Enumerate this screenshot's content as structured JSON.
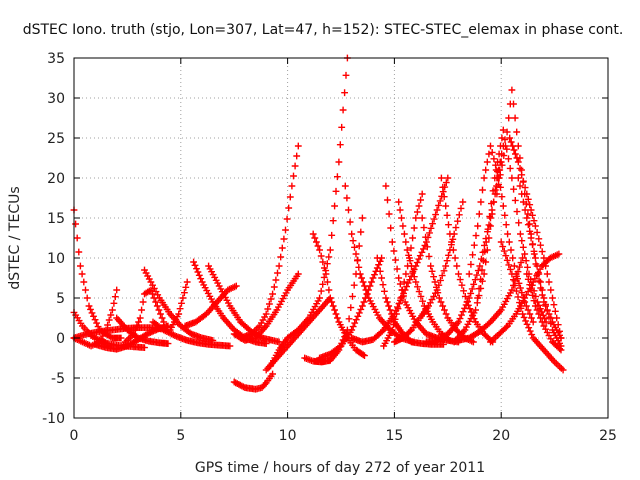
{
  "chart_data": {
    "type": "scatter",
    "title": "dSTEC Iono. truth (stjo, Lon=307, Lat=47, h=152): STEC-STEC_elemax in phase cont.",
    "xlabel": "GPS time / hours of day 272 of year 2011",
    "ylabel": "dSTEC  / TECUs",
    "xlim": [
      0,
      25
    ],
    "ylim": [
      -10,
      35
    ],
    "x_ticks": [
      0,
      5,
      10,
      15,
      20,
      25
    ],
    "y_ticks": [
      -10,
      -5,
      0,
      5,
      10,
      15,
      20,
      25,
      30,
      35
    ],
    "x_tick_labels": [
      "0",
      "5",
      "10",
      "15",
      "20",
      "25"
    ],
    "y_tick_labels": [
      "-10",
      "-5",
      "0",
      "5",
      "10",
      "15",
      "20",
      "25",
      "30",
      "35"
    ],
    "grid": true,
    "marker": "plus",
    "color": "#ff0000",
    "series": [
      {
        "x": [
          0.0,
          0.3,
          0.7,
          1.2,
          1.8,
          2.2
        ],
        "y": [
          16.0,
          9.0,
          4.0,
          1.0,
          0.0,
          0.0
        ]
      },
      {
        "x": [
          0.0,
          0.4,
          0.8,
          1.2,
          1.6,
          2.0,
          2.4,
          2.8,
          3.3
        ],
        "y": [
          3.2,
          1.5,
          0.3,
          -0.3,
          -0.7,
          -0.9,
          -1.0,
          -1.1,
          -1.2
        ]
      },
      {
        "x": [
          0.0,
          0.4,
          0.8,
          1.2,
          1.5,
          1.8,
          2.0
        ],
        "y": [
          0.0,
          -0.5,
          -1.0,
          -0.5,
          1.0,
          3.5,
          6.0
        ]
      },
      {
        "x": [
          0.0,
          0.6,
          1.2,
          1.8,
          2.4,
          3.0,
          3.6,
          4.2
        ],
        "y": [
          0.0,
          0.5,
          0.8,
          1.0,
          1.2,
          1.3,
          1.3,
          1.1
        ]
      },
      {
        "x": [
          1.0,
          1.5,
          2.0,
          2.5,
          3.0,
          3.5,
          4.0,
          4.4
        ],
        "y": [
          -0.8,
          -1.2,
          -1.4,
          -1.0,
          -0.2,
          0.6,
          1.2,
          1.5
        ]
      },
      {
        "x": [
          2.0,
          2.5,
          3.0,
          3.5,
          4.0,
          4.4
        ],
        "y": [
          2.5,
          1.0,
          0.0,
          -0.4,
          -0.6,
          -0.7
        ]
      },
      {
        "x": [
          2.4,
          2.8,
          3.1,
          3.3,
          3.6,
          3.9,
          4.2
        ],
        "y": [
          -0.5,
          0.5,
          2.5,
          5.5,
          6.0,
          4.0,
          2.0
        ]
      },
      {
        "x": [
          3.3,
          3.6,
          4.0,
          4.5,
          5.0,
          5.5,
          6.0,
          6.5
        ],
        "y": [
          8.5,
          7.0,
          5.0,
          3.0,
          1.5,
          0.5,
          0.0,
          -0.3
        ]
      },
      {
        "x": [
          3.7,
          4.2,
          4.8,
          5.3,
          5.8,
          6.3,
          6.8,
          7.3
        ],
        "y": [
          2.0,
          1.0,
          0.2,
          -0.3,
          -0.6,
          -0.8,
          -0.9,
          -1.0
        ]
      },
      {
        "x": [
          4.5,
          4.9,
          5.1,
          5.3
        ],
        "y": [
          1.0,
          3.0,
          5.0,
          7.0
        ]
      },
      {
        "x": [
          5.6,
          6.0,
          6.5,
          7.0,
          7.5,
          8.0,
          8.5,
          9.0
        ],
        "y": [
          9.5,
          7.0,
          4.5,
          2.5,
          1.0,
          0.0,
          -0.5,
          -0.7
        ]
      },
      {
        "x": [
          6.3,
          6.8,
          7.3,
          7.8,
          8.3,
          8.8,
          9.3,
          9.6
        ],
        "y": [
          9.0,
          6.5,
          4.0,
          2.0,
          0.8,
          0.0,
          -0.3,
          -0.5
        ]
      },
      {
        "x": [
          5.2,
          5.7,
          6.2,
          6.7,
          7.2,
          7.6
        ],
        "y": [
          1.5,
          2.0,
          3.0,
          4.5,
          6.0,
          6.5
        ]
      },
      {
        "x": [
          7.5,
          8.0,
          8.5,
          9.0,
          9.5,
          10.0,
          10.5
        ],
        "y": [
          0.5,
          -0.3,
          0.0,
          1.5,
          3.5,
          6.0,
          8.0
        ]
      },
      {
        "x": [
          7.5,
          8.0,
          8.5,
          8.8,
          9.0,
          9.3
        ],
        "y": [
          -5.5,
          -6.2,
          -6.4,
          -6.2,
          -5.6,
          -4.5
        ]
      },
      {
        "x": [
          7.8,
          8.3,
          8.7,
          9.0,
          9.3,
          9.6,
          9.9,
          10.2,
          10.5
        ],
        "y": [
          0.0,
          0.5,
          1.5,
          3.0,
          5.5,
          9.0,
          13.5,
          19.0,
          24.0
        ]
      },
      {
        "x": [
          9.0,
          9.5,
          10.0,
          10.5,
          11.0,
          11.5,
          12.0
        ],
        "y": [
          -4.0,
          -2.5,
          -1.0,
          0.5,
          2.0,
          3.5,
          5.0
        ]
      },
      {
        "x": [
          9.2,
          9.6,
          10.0,
          10.5,
          11.0,
          11.5,
          12.0,
          12.4,
          12.8
        ],
        "y": [
          -3.5,
          -1.5,
          0.0,
          1.0,
          2.5,
          5.0,
          11.0,
          22.0,
          35.0
        ]
      },
      {
        "x": [
          11.2,
          11.5,
          11.8,
          12.0,
          12.4,
          12.8,
          13.2,
          13.6
        ],
        "y": [
          13.0,
          11.0,
          8.0,
          5.0,
          2.0,
          0.0,
          -1.5,
          -2.2
        ]
      },
      {
        "x": [
          10.8,
          11.2,
          11.6,
          12.0,
          12.4,
          12.8,
          13.2,
          13.5
        ],
        "y": [
          -2.5,
          -2.9,
          -3.0,
          -2.8,
          -1.5,
          1.0,
          8.0,
          15.0
        ]
      },
      {
        "x": [
          12.7,
          13.0,
          13.4,
          13.8,
          14.3,
          14.8,
          15.3,
          15.9
        ],
        "y": [
          19.0,
          13.0,
          8.0,
          5.0,
          2.5,
          1.0,
          0.0,
          -0.5
        ]
      },
      {
        "x": [
          11.5,
          12.0,
          12.5,
          13.0,
          13.5,
          14.0,
          14.4
        ],
        "y": [
          -2.5,
          -2.0,
          -1.0,
          1.0,
          4.0,
          7.5,
          10.0
        ]
      },
      {
        "x": [
          13.0,
          13.5,
          14.0,
          14.5,
          15.0,
          15.5,
          16.0,
          16.5,
          17.0,
          17.5
        ],
        "y": [
          0.0,
          -0.5,
          -0.2,
          1.0,
          3.0,
          6.0,
          9.0,
          12.0,
          16.0,
          20.0
        ]
      },
      {
        "x": [
          14.2,
          14.6,
          15.0,
          15.4,
          15.8,
          16.3,
          16.8,
          17.3
        ],
        "y": [
          10.0,
          5.0,
          2.0,
          0.5,
          -0.5,
          -0.7,
          -0.8,
          -0.8
        ]
      },
      {
        "x": [
          14.6,
          14.9,
          15.2,
          15.5,
          16.0,
          16.5,
          17.0,
          17.5,
          18.0
        ],
        "y": [
          19.0,
          12.0,
          7.5,
          4.5,
          2.0,
          0.5,
          0.0,
          -0.3,
          -0.5
        ]
      },
      {
        "x": [
          14.5,
          14.9,
          15.3,
          15.7,
          16.0,
          16.3
        ],
        "y": [
          -1.0,
          1.0,
          5.0,
          10.0,
          15.0,
          18.0
        ]
      },
      {
        "x": [
          15.2,
          15.6,
          16.0,
          16.4,
          16.8,
          17.2,
          17.6
        ],
        "y": [
          17.0,
          11.0,
          7.0,
          4.0,
          2.0,
          0.5,
          -0.3
        ]
      },
      {
        "x": [
          15.0,
          15.4,
          15.8,
          16.2,
          16.6,
          17.0,
          17.4,
          17.8,
          18.2
        ],
        "y": [
          -0.5,
          0.0,
          1.0,
          2.5,
          4.0,
          6.0,
          9.0,
          13.0,
          17.0
        ]
      },
      {
        "x": [
          16.3,
          16.7,
          17.1,
          17.5,
          17.9,
          18.3,
          18.7
        ],
        "y": [
          15.0,
          9.0,
          5.0,
          2.5,
          1.0,
          0.0,
          -0.5
        ]
      },
      {
        "x": [
          17.2,
          17.6,
          18.0,
          18.4,
          18.8,
          19.2,
          19.6
        ],
        "y": [
          20.0,
          13.0,
          8.0,
          4.5,
          2.0,
          0.5,
          -0.5
        ]
      },
      {
        "x": [
          16.5,
          17.0,
          17.5,
          18.0,
          18.5,
          19.0,
          19.5,
          20.0
        ],
        "y": [
          -0.5,
          -0.3,
          0.5,
          2.0,
          5.0,
          9.0,
          15.0,
          22.0
        ]
      },
      {
        "x": [
          17.8,
          18.3,
          18.8,
          19.2,
          19.5,
          19.8,
          20.1
        ],
        "y": [
          -0.5,
          1.0,
          3.5,
          8.0,
          14.0,
          20.0,
          24.0
        ]
      },
      {
        "x": [
          18.5,
          18.9,
          19.2,
          19.5,
          19.9,
          20.3,
          20.7,
          21.1,
          21.5
        ],
        "y": [
          8.0,
          14.0,
          20.0,
          24.0,
          20.0,
          13.0,
          8.0,
          4.5,
          2.0
        ]
      },
      {
        "x": [
          18.9,
          19.3,
          19.7,
          20.1,
          20.5,
          20.9,
          21.3,
          21.7,
          22.1
        ],
        "y": [
          5.0,
          12.0,
          20.0,
          26.0,
          20.0,
          13.0,
          8.0,
          4.5,
          2.0
        ]
      },
      {
        "x": [
          19.8,
          20.2,
          20.5,
          20.8,
          21.1,
          21.4,
          21.7,
          22.0,
          22.4,
          22.8
        ],
        "y": [
          18.0,
          24.0,
          31.0,
          24.0,
          18.0,
          13.0,
          8.0,
          4.5,
          2.0,
          0.0
        ]
      },
      {
        "x": [
          20.4,
          20.8,
          21.2,
          21.6,
          22.0,
          22.4,
          22.8
        ],
        "y": [
          25.0,
          22.0,
          18.0,
          14.0,
          10.0,
          5.0,
          0.0
        ]
      },
      {
        "x": [
          20.8,
          21.2,
          21.6,
          22.0,
          22.4,
          22.8
        ],
        "y": [
          20.0,
          15.0,
          10.0,
          5.0,
          1.0,
          -1.0
        ]
      },
      {
        "x": [
          19.5,
          19.9,
          20.3,
          20.7,
          21.1,
          21.5,
          21.9,
          22.3,
          22.7
        ],
        "y": [
          -0.5,
          0.5,
          1.5,
          3.0,
          5.0,
          7.0,
          9.0,
          10.0,
          10.5
        ]
      },
      {
        "x": [
          18.0,
          18.5,
          19.0,
          19.5,
          20.0,
          20.5,
          21.0
        ],
        "y": [
          -0.3,
          0.0,
          0.8,
          2.0,
          3.5,
          6.0,
          10.0
        ]
      },
      {
        "x": [
          20.0,
          20.5,
          21.0,
          21.5,
          22.0,
          22.5,
          22.9
        ],
        "y": [
          12.0,
          8.0,
          3.0,
          0.0,
          -1.5,
          -3.0,
          -4.0
        ]
      },
      {
        "x": [
          21.2,
          21.6,
          22.0,
          22.4,
          22.8
        ],
        "y": [
          8.0,
          4.0,
          1.5,
          -0.5,
          -1.5
        ]
      }
    ]
  }
}
